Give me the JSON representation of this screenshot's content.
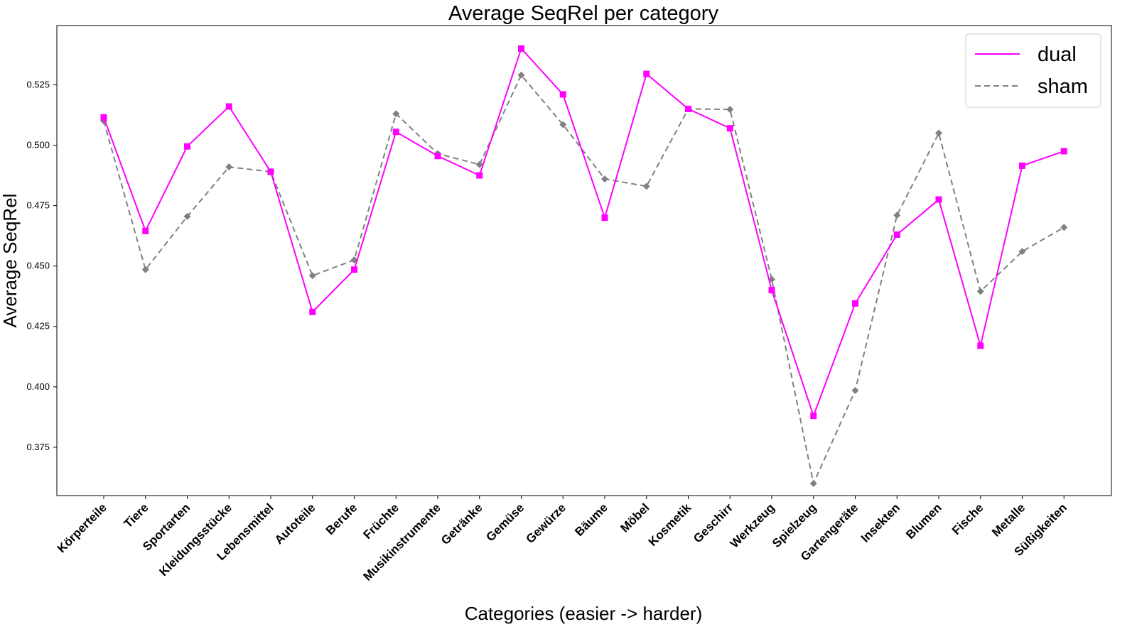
{
  "chart_data": {
    "type": "line",
    "title": "Average SeqRel per category",
    "xlabel": "Categories (easier -> harder)",
    "ylabel": "Average SeqRel",
    "ylim": [
      0.355,
      0.5495
    ],
    "yticks": [
      "0.375",
      "0.400",
      "0.425",
      "0.450",
      "0.475",
      "0.500",
      "0.525"
    ],
    "grid": false,
    "legend_position": "top-right",
    "categories": [
      "Körperteile",
      "Tiere",
      "Sportarten",
      "Kleidungsstücke",
      "Lebensmittel",
      "Autoteile",
      "Berufe",
      "Früchte",
      "Musikinstrumente",
      "Getränke",
      "Gemüse",
      "Gewürze",
      "Bäume",
      "Möbel",
      "Kosmetik",
      "Geschirr",
      "Werkzeug",
      "Spielzeug",
      "Gartengeräte",
      "Insekten",
      "Blumen",
      "Fische",
      "Metalle",
      "Süßigkeiten"
    ],
    "series": [
      {
        "name": "dual",
        "color": "#ff00ff",
        "style": "solid",
        "marker": "square",
        "values": [
          0.5115,
          0.4645,
          0.4995,
          0.516,
          0.489,
          0.431,
          0.4485,
          0.5055,
          0.4955,
          0.4875,
          0.54,
          0.521,
          0.47,
          0.5295,
          0.515,
          0.507,
          0.44,
          0.388,
          0.4345,
          0.463,
          0.4775,
          0.417,
          0.4915,
          0.4975
        ]
      },
      {
        "name": "sham",
        "color": "#808080",
        "style": "dashed",
        "marker": "diamond",
        "values": [
          0.51,
          0.4485,
          0.4705,
          0.491,
          0.489,
          0.446,
          0.4525,
          0.513,
          0.4965,
          0.492,
          0.529,
          0.5085,
          0.486,
          0.483,
          0.515,
          0.5148,
          0.4445,
          0.36,
          0.3985,
          0.471,
          0.505,
          0.4395,
          0.456,
          0.466
        ]
      }
    ]
  }
}
